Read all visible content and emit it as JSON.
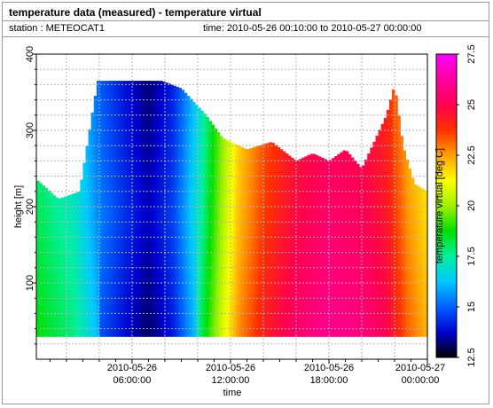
{
  "header": {
    "title": "temperature data (measured) - temperature virtual",
    "station": "station : METEOCAT1",
    "time_range": "time: 2010-05-26 00:10:00 to 2010-05-27 00:00:00"
  },
  "chart_data": {
    "type": "heatmap",
    "xlabel": "time",
    "ylabel": "height [m]",
    "colorbar_label": "temperature virtual [deg C]",
    "x_range": [
      "2010-05-26 00:10:00",
      "2010-05-27 00:00:00"
    ],
    "x_ticks": [
      {
        "hour": 6,
        "line1": "2010-05-26",
        "line2": "06:00:00"
      },
      {
        "hour": 12,
        "line1": "2010-05-26",
        "line2": "12:00:00"
      },
      {
        "hour": 18,
        "line1": "2010-05-26",
        "line2": "18:00:00"
      },
      {
        "hour": 24,
        "line1": "2010-05-27",
        "line2": "00:00:00"
      }
    ],
    "ylim": [
      0,
      400
    ],
    "y_ticks": [
      100,
      200,
      300,
      400
    ],
    "colorbar_range": [
      12.5,
      27.5
    ],
    "colorbar_ticks": [
      "12.5",
      "15",
      "17.5",
      "20",
      "22.5",
      "25",
      "27.5"
    ],
    "colormap": [
      "#000000",
      "#0000d0",
      "#0060ff",
      "#00c8ff",
      "#00f0a0",
      "#00e000",
      "#a0f000",
      "#ffff00",
      "#ffa000",
      "#ff3000",
      "#ff0050",
      "#ff00a0",
      "#ff00ff"
    ],
    "min_height_m": 30,
    "temperature_profile": [
      {
        "hour": 0.2,
        "temp": 18.5
      },
      {
        "hour": 2.5,
        "temp": 17.5
      },
      {
        "hour": 4.0,
        "temp": 15.8
      },
      {
        "hour": 5.5,
        "temp": 14.8
      },
      {
        "hour": 7.0,
        "temp": 14.0
      },
      {
        "hour": 8.5,
        "temp": 15.0
      },
      {
        "hour": 9.8,
        "temp": 17.0
      },
      {
        "hour": 11.0,
        "temp": 19.5
      },
      {
        "hour": 12.5,
        "temp": 22.5
      },
      {
        "hour": 14.0,
        "temp": 24.0
      },
      {
        "hour": 16.0,
        "temp": 25.2
      },
      {
        "hour": 18.0,
        "temp": 25.8
      },
      {
        "hour": 20.0,
        "temp": 25.5
      },
      {
        "hour": 21.5,
        "temp": 24.8
      },
      {
        "hour": 22.8,
        "temp": 23.0
      },
      {
        "hour": 24.0,
        "temp": 22.0
      }
    ],
    "height_profile": [
      {
        "hour": 0.2,
        "max_height_m": 235
      },
      {
        "hour": 1.5,
        "max_height_m": 210
      },
      {
        "hour": 2.8,
        "max_height_m": 220
      },
      {
        "hour": 3.9,
        "max_height_m": 365
      },
      {
        "hour": 7.8,
        "max_height_m": 365
      },
      {
        "hour": 9.0,
        "max_height_m": 355
      },
      {
        "hour": 10.5,
        "max_height_m": 320
      },
      {
        "hour": 11.5,
        "max_height_m": 290
      },
      {
        "hour": 13.0,
        "max_height_m": 275
      },
      {
        "hour": 14.5,
        "max_height_m": 285
      },
      {
        "hour": 16.0,
        "max_height_m": 260
      },
      {
        "hour": 17.0,
        "max_height_m": 270
      },
      {
        "hour": 18.0,
        "max_height_m": 260
      },
      {
        "hour": 19.0,
        "max_height_m": 275
      },
      {
        "hour": 20.0,
        "max_height_m": 250
      },
      {
        "hour": 21.5,
        "max_height_m": 320
      },
      {
        "hour": 22.0,
        "max_height_m": 360
      },
      {
        "hour": 22.5,
        "max_height_m": 280
      },
      {
        "hour": 23.2,
        "max_height_m": 230
      },
      {
        "hour": 24.0,
        "max_height_m": 220
      }
    ]
  }
}
